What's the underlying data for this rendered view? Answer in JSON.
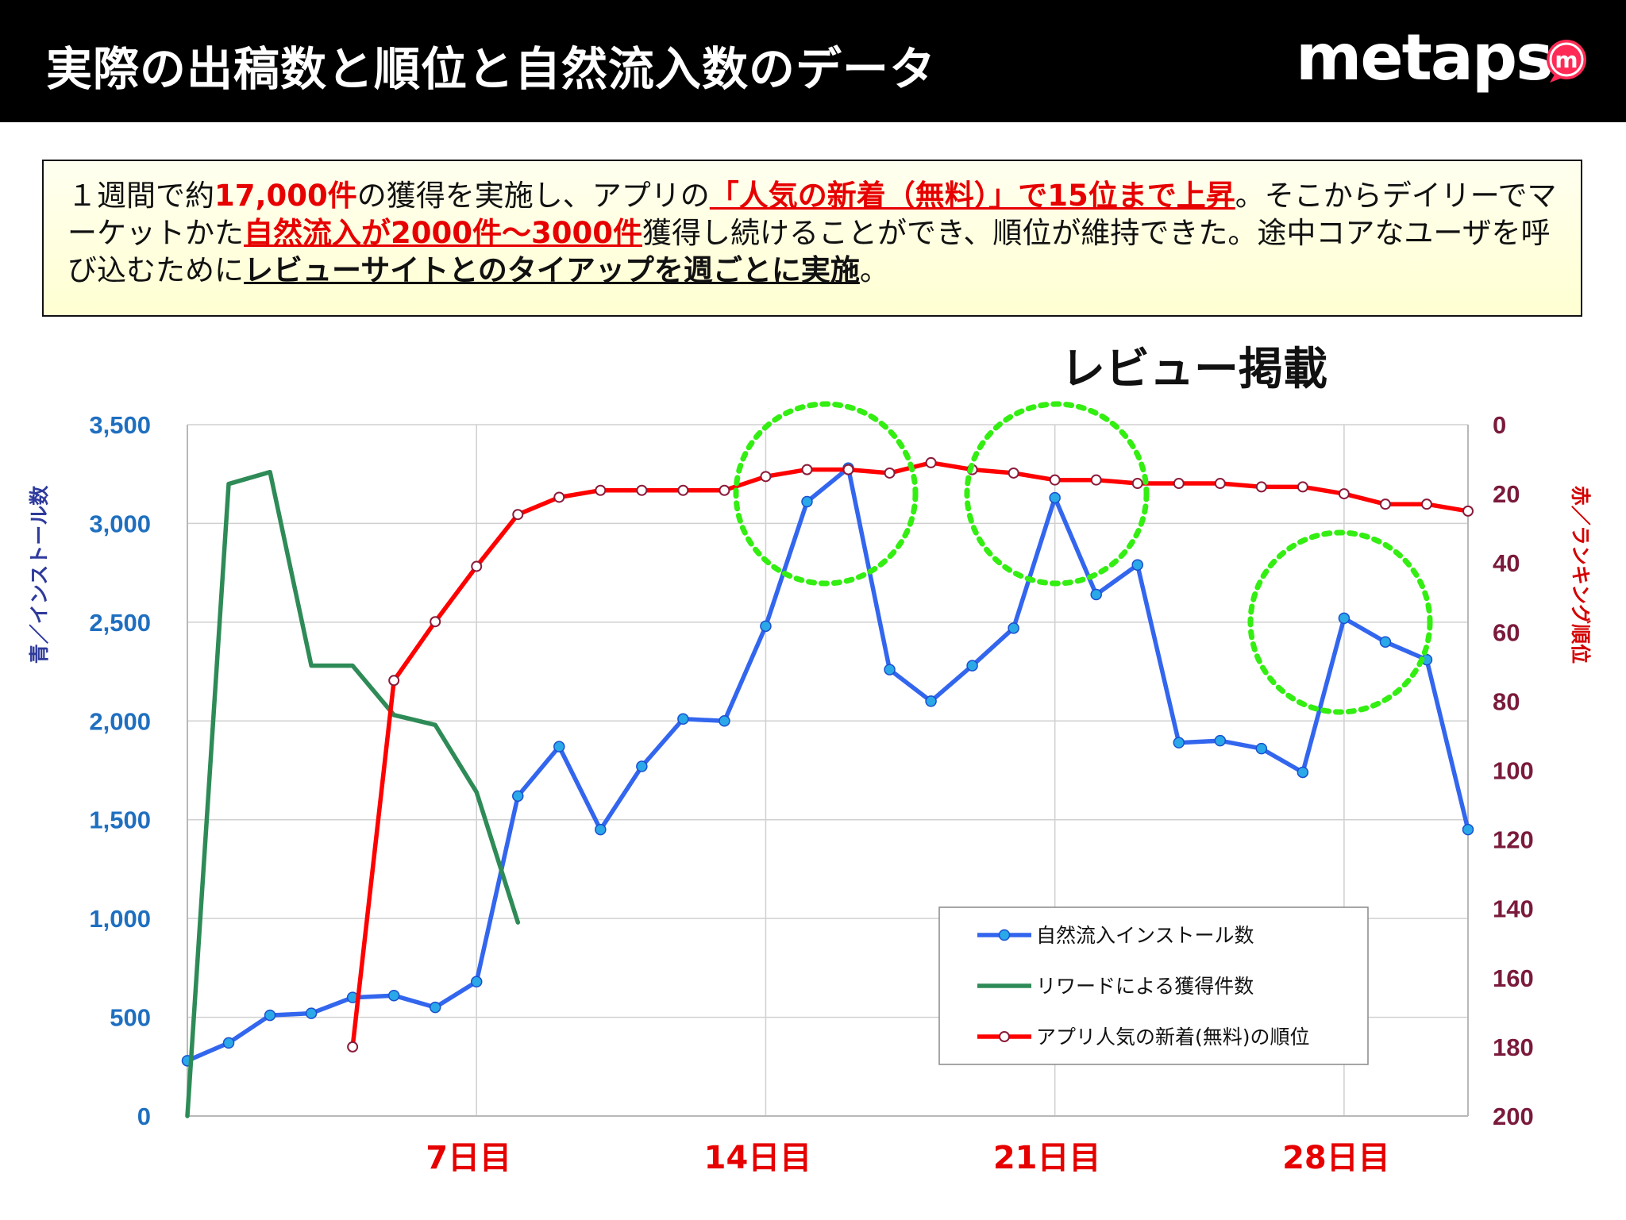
{
  "header": {
    "title": "実際の出稿数と順位と自然流入数のデータ",
    "brand": "metaps",
    "brand_mark_letter": "m"
  },
  "summary": {
    "segments": [
      {
        "text": "１週間で約",
        "style": "normal"
      },
      {
        "text": "17,000件",
        "style": "red-bold"
      },
      {
        "text": "の獲得を実施し、アプリの",
        "style": "normal"
      },
      {
        "text": "「人気の新着（無料）」で15位まで上昇",
        "style": "red-bold-underline"
      },
      {
        "text": "。そこからデイリーでマーケットかた",
        "style": "normal"
      },
      {
        "text": "自然流入が2000件〜3000件",
        "style": "red-bold-underline"
      },
      {
        "text": "獲得し続けることができ、順位が維持できた。途中コアなユーザを呼び込むために",
        "style": "normal"
      },
      {
        "text": "レビューサイトとのタイアップを週ごとに実施",
        "style": "bold-underline"
      },
      {
        "text": "。",
        "style": "normal"
      }
    ]
  },
  "annotation": {
    "review_label": "レビュー掲載"
  },
  "colors": {
    "installs": "#3366ee",
    "reward": "#2e8b57",
    "ranking": "#ff0000",
    "highlight_circle": "#33ee11",
    "left_tick": "#1f6fc0",
    "right_tick": "#7a1a3c",
    "day_label": "#e60000"
  },
  "chart_data": {
    "type": "line",
    "title": "",
    "x": [
      1,
      2,
      3,
      4,
      5,
      6,
      7,
      8,
      9,
      10,
      11,
      12,
      13,
      14,
      15,
      16,
      17,
      18,
      19,
      20,
      21,
      22,
      23,
      24,
      25,
      26,
      27,
      28,
      29,
      30,
      31,
      32
    ],
    "x_tick_labels": [
      {
        "day": 8,
        "label": "7日目"
      },
      {
        "day": 15,
        "label": "14日目"
      },
      {
        "day": 22,
        "label": "21日目"
      },
      {
        "day": 29,
        "label": "28日目"
      }
    ],
    "y_left": {
      "label": "青／インストール数",
      "range": [
        0,
        3500
      ],
      "ticks": [
        0,
        500,
        1000,
        1500,
        2000,
        2500,
        3000,
        3500
      ],
      "tick_labels": [
        "0",
        "500",
        "1,000",
        "1,500",
        "2,000",
        "2,500",
        "3,000",
        "3,500"
      ]
    },
    "y_right": {
      "label": "赤／ランキング順位",
      "range": [
        0,
        200
      ],
      "inverted": true,
      "ticks": [
        0,
        20,
        40,
        60,
        80,
        100,
        120,
        140,
        160,
        180,
        200
      ],
      "tick_labels": [
        "0",
        "20",
        "40",
        "60",
        "80",
        "100",
        "120",
        "140",
        "160",
        "180",
        "200"
      ]
    },
    "grid": true,
    "legend_position": "bottom-right",
    "series": [
      {
        "name": "自然流入インストール数",
        "axis": "left",
        "marker": "filled-circle",
        "values": [
          280,
          370,
          510,
          520,
          600,
          610,
          550,
          680,
          1620,
          1870,
          1450,
          1770,
          2010,
          2000,
          2480,
          3110,
          3280,
          2260,
          2100,
          2280,
          2470,
          3130,
          2640,
          2790,
          1890,
          1900,
          1860,
          1740,
          2520,
          2400,
          2310,
          1450
        ]
      },
      {
        "name": "リワードによる獲得件数",
        "axis": "left",
        "marker": "none",
        "values": [
          0,
          3200,
          3260,
          2280,
          2280,
          2030,
          1980,
          1640,
          980,
          null,
          null,
          null,
          null,
          null,
          null,
          null,
          null,
          null,
          null,
          null,
          null,
          null,
          null,
          null,
          null,
          null,
          null,
          null,
          null,
          null,
          null,
          null
        ]
      },
      {
        "name": "アプリ人気の新着(無料)の順位",
        "axis": "right",
        "marker": "hollow-circle",
        "values": [
          null,
          null,
          null,
          null,
          180,
          74,
          57,
          41,
          26,
          21,
          19,
          19,
          19,
          19,
          15,
          13,
          13,
          14,
          11,
          13,
          14,
          16,
          16,
          17,
          17,
          17,
          18,
          18,
          20,
          23,
          23,
          25
        ]
      }
    ],
    "highlight_circles_around_days": [
      17,
      22,
      29
    ]
  }
}
